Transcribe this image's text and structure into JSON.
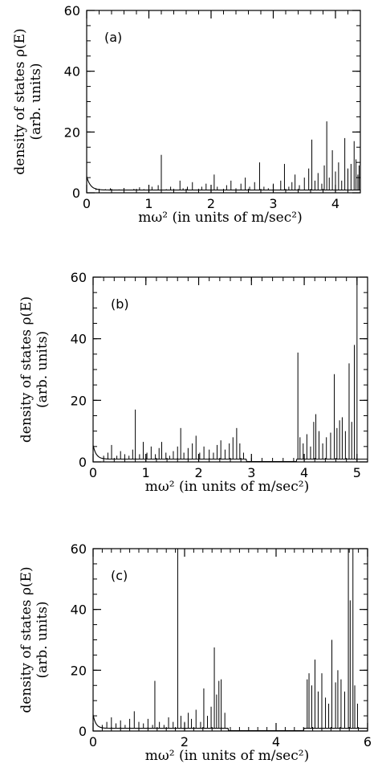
{
  "chart_data": [
    {
      "type": "line",
      "panel_label": "(a)",
      "ylabel_line1": "density of states ρ(E)",
      "ylabel_line2": "(arb. units)",
      "xlabel": "mω² (in units of m/sec²)",
      "xlim": [
        0,
        4.4
      ],
      "ylim": [
        0,
        60
      ],
      "xticks_major": [
        0,
        1,
        2,
        3,
        4
      ],
      "yticks_major": [
        0,
        20,
        40,
        60
      ],
      "xtick_labels": [
        "0",
        "1",
        "2",
        "3",
        "4"
      ],
      "ytick_labels": [
        "0",
        "20",
        "40",
        "60"
      ],
      "x_minor_step": 0.2,
      "y_minor_step": 5,
      "spikes": [
        [
          0.15,
          1.5
        ],
        [
          0.22,
          1.0
        ],
        [
          0.3,
          1.2
        ],
        [
          0.38,
          1.5
        ],
        [
          0.45,
          0.8
        ],
        [
          0.52,
          1.1
        ],
        [
          0.6,
          1.6
        ],
        [
          0.68,
          1.0
        ],
        [
          0.76,
          1.3
        ],
        [
          0.85,
          1.8
        ],
        [
          0.92,
          1.2
        ],
        [
          1.0,
          1.4
        ],
        [
          1.05,
          2.0
        ],
        [
          1.1,
          1.0
        ],
        [
          1.15,
          2.5
        ],
        [
          1.2,
          12.5
        ],
        [
          1.28,
          1.2
        ],
        [
          1.35,
          2.0
        ],
        [
          1.42,
          1.0
        ],
        [
          1.5,
          4.0
        ],
        [
          1.55,
          1.5
        ],
        [
          1.62,
          2.0
        ],
        [
          1.7,
          3.5
        ],
        [
          1.78,
          1.0
        ],
        [
          1.85,
          2.0
        ],
        [
          1.92,
          3.0
        ],
        [
          2.0,
          1.5
        ],
        [
          2.05,
          6.0
        ],
        [
          2.1,
          2.0
        ],
        [
          2.18,
          1.0
        ],
        [
          2.25,
          2.5
        ],
        [
          2.32,
          4.0
        ],
        [
          2.4,
          1.5
        ],
        [
          2.48,
          3.0
        ],
        [
          2.55,
          5.0
        ],
        [
          2.62,
          2.0
        ],
        [
          2.7,
          3.5
        ],
        [
          2.78,
          10.0
        ],
        [
          2.85,
          2.0
        ],
        [
          2.92,
          1.5
        ],
        [
          3.0,
          3.0
        ],
        [
          3.05,
          1.0
        ],
        [
          3.12,
          4.0
        ],
        [
          3.18,
          9.5
        ],
        [
          3.25,
          2.0
        ],
        [
          3.3,
          3.5
        ],
        [
          3.35,
          6.0
        ],
        [
          3.42,
          2.5
        ],
        [
          3.5,
          5.0
        ],
        [
          3.57,
          8.0
        ],
        [
          3.62,
          17.5
        ],
        [
          3.67,
          4.0
        ],
        [
          3.72,
          6.5
        ],
        [
          3.78,
          3.0
        ],
        [
          3.82,
          9.0
        ],
        [
          3.86,
          23.5
        ],
        [
          3.9,
          5.0
        ],
        [
          3.95,
          14.0
        ],
        [
          4.0,
          7.0
        ],
        [
          4.05,
          10.0
        ],
        [
          4.1,
          4.0
        ],
        [
          4.15,
          18.0
        ],
        [
          4.2,
          8.0
        ],
        [
          4.25,
          9.5
        ],
        [
          4.3,
          17.0
        ],
        [
          4.33,
          11.0
        ],
        [
          4.36,
          6.0
        ],
        [
          4.38,
          9.0
        ]
      ]
    },
    {
      "type": "line",
      "panel_label": "(b)",
      "ylabel_line1": "density of states ρ(E)",
      "ylabel_line2": "(arb. units)",
      "xlabel": "mω² (in units of m/sec²)",
      "xlim": [
        0,
        5.2
      ],
      "ylim": [
        0,
        60
      ],
      "xticks_major": [
        0,
        1,
        2,
        3,
        4,
        5
      ],
      "yticks_major": [
        0,
        20,
        40,
        60
      ],
      "xtick_labels": [
        "0",
        "1",
        "2",
        "3",
        "4",
        "5"
      ],
      "ytick_labels": [
        "0",
        "20",
        "40",
        "60"
      ],
      "x_minor_step": 0.2,
      "y_minor_step": 5,
      "gap": [
        2.9,
        3.85
      ],
      "spikes": [
        [
          0.2,
          2.0
        ],
        [
          0.28,
          3.0
        ],
        [
          0.35,
          5.5
        ],
        [
          0.45,
          2.0
        ],
        [
          0.52,
          3.5
        ],
        [
          0.6,
          2.5
        ],
        [
          0.68,
          2.0
        ],
        [
          0.75,
          4.0
        ],
        [
          0.8,
          17.0
        ],
        [
          0.88,
          2.5
        ],
        [
          0.95,
          6.5
        ],
        [
          1.02,
          3.0
        ],
        [
          1.1,
          5.0
        ],
        [
          1.18,
          2.5
        ],
        [
          1.25,
          4.5
        ],
        [
          1.3,
          6.5
        ],
        [
          1.38,
          3.0
        ],
        [
          1.45,
          2.0
        ],
        [
          1.52,
          3.5
        ],
        [
          1.6,
          5.0
        ],
        [
          1.66,
          11.0
        ],
        [
          1.72,
          3.0
        ],
        [
          1.8,
          4.5
        ],
        [
          1.88,
          6.0
        ],
        [
          1.95,
          8.5
        ],
        [
          2.02,
          3.0
        ],
        [
          2.1,
          5.0
        ],
        [
          2.2,
          4.0
        ],
        [
          2.28,
          3.0
        ],
        [
          2.35,
          5.5
        ],
        [
          2.42,
          7.0
        ],
        [
          2.5,
          4.0
        ],
        [
          2.58,
          6.0
        ],
        [
          2.65,
          8.0
        ],
        [
          2.72,
          11.0
        ],
        [
          2.78,
          6.0
        ],
        [
          2.85,
          3.0
        ],
        [
          3.88,
          35.5
        ],
        [
          3.92,
          8.0
        ],
        [
          3.98,
          6.0
        ],
        [
          4.05,
          9.0
        ],
        [
          4.12,
          5.0
        ],
        [
          4.18,
          13.0
        ],
        [
          4.22,
          15.5
        ],
        [
          4.28,
          10.0
        ],
        [
          4.35,
          6.0
        ],
        [
          4.42,
          8.0
        ],
        [
          4.5,
          9.5
        ],
        [
          4.57,
          28.5
        ],
        [
          4.62,
          11.0
        ],
        [
          4.67,
          13.5
        ],
        [
          4.72,
          14.5
        ],
        [
          4.78,
          10.0
        ],
        [
          4.85,
          32.0
        ],
        [
          4.9,
          13.0
        ],
        [
          4.95,
          38.0
        ],
        [
          5.0,
          60.0
        ]
      ]
    },
    {
      "type": "line",
      "panel_label": "(c)",
      "ylabel_line1": "density of states ρ(E)",
      "ylabel_line2": "(arb. units)",
      "xlabel": "mω² (in units of m/sec²)",
      "xlim": [
        0,
        6
      ],
      "ylim": [
        0,
        60
      ],
      "xticks_major": [
        0,
        2,
        4,
        6
      ],
      "yticks_major": [
        0,
        20,
        40,
        60
      ],
      "xtick_labels": [
        "0",
        "2",
        "4",
        "6"
      ],
      "ytick_labels": [
        "0",
        "20",
        "40",
        "60"
      ],
      "x_minor_step": 0.2,
      "y_minor_step": 5,
      "gap": [
        2.95,
        4.6
      ],
      "spikes": [
        [
          0.2,
          2.0
        ],
        [
          0.3,
          3.0
        ],
        [
          0.4,
          4.5
        ],
        [
          0.5,
          2.5
        ],
        [
          0.6,
          3.5
        ],
        [
          0.7,
          2.0
        ],
        [
          0.8,
          4.0
        ],
        [
          0.9,
          6.5
        ],
        [
          1.0,
          3.0
        ],
        [
          1.1,
          2.5
        ],
        [
          1.2,
          4.0
        ],
        [
          1.3,
          2.0
        ],
        [
          1.35,
          16.5
        ],
        [
          1.45,
          3.0
        ],
        [
          1.55,
          2.0
        ],
        [
          1.65,
          4.5
        ],
        [
          1.75,
          3.0
        ],
        [
          1.85,
          60.0
        ],
        [
          1.92,
          5.0
        ],
        [
          2.0,
          3.0
        ],
        [
          2.08,
          6.0
        ],
        [
          2.15,
          4.0
        ],
        [
          2.25,
          7.0
        ],
        [
          2.35,
          3.0
        ],
        [
          2.42,
          14.0
        ],
        [
          2.5,
          5.0
        ],
        [
          2.58,
          8.0
        ],
        [
          2.65,
          27.5
        ],
        [
          2.7,
          12.0
        ],
        [
          2.75,
          16.5
        ],
        [
          2.8,
          17.0
        ],
        [
          2.88,
          6.0
        ],
        [
          4.68,
          17.0
        ],
        [
          4.72,
          19.0
        ],
        [
          4.78,
          15.0
        ],
        [
          4.85,
          23.5
        ],
        [
          4.92,
          13.0
        ],
        [
          5.0,
          19.0
        ],
        [
          5.08,
          11.0
        ],
        [
          5.15,
          9.0
        ],
        [
          5.22,
          30.0
        ],
        [
          5.3,
          16.0
        ],
        [
          5.35,
          20.0
        ],
        [
          5.42,
          17.0
        ],
        [
          5.5,
          13.0
        ],
        [
          5.58,
          60.0
        ],
        [
          5.62,
          43.0
        ],
        [
          5.68,
          60.0
        ],
        [
          5.72,
          15.0
        ],
        [
          5.78,
          9.0
        ]
      ]
    }
  ]
}
